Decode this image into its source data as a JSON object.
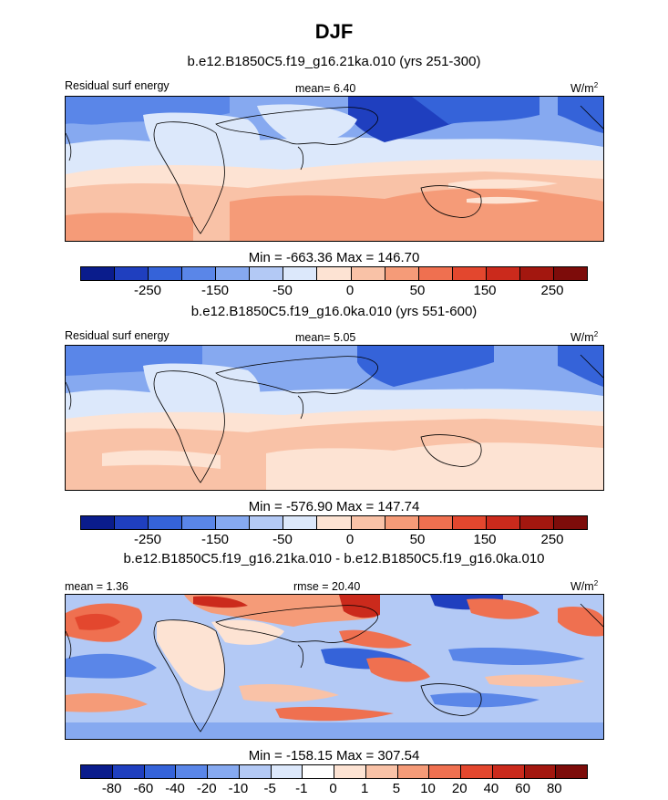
{
  "figure": {
    "title": "DJF"
  },
  "panels": [
    {
      "case": "b.e12.B1850C5.f19_g16.21ka.010 (yrs 251-300)",
      "left_label": "Residual surf energy",
      "center_label": "mean=   6.40",
      "units_base": "W/m",
      "units_exp": "2",
      "min_max": "Min = -663.36 Max = 146.70",
      "colorbar": {
        "colors": [
          "#0a1c8c",
          "#1f3fbf",
          "#3563d9",
          "#5a86e8",
          "#86a9f0",
          "#b3c9f5",
          "#dce8fb",
          "#fde3d3",
          "#f9c2a7",
          "#f59b78",
          "#ef7050",
          "#e3472e",
          "#cb2a1c",
          "#a3170f",
          "#7d0c0a"
        ],
        "ticks": [
          "-250",
          "-150",
          "-50",
          "0",
          "50",
          "150",
          "250"
        ]
      }
    },
    {
      "case": "b.e12.B1850C5.f19_g16.0ka.010 (yrs 551-600)",
      "left_label": "Residual surf energy",
      "center_label": "mean=   5.05",
      "units_base": "W/m",
      "units_exp": "2",
      "min_max": "Min = -576.90 Max = 147.74",
      "colorbar": {
        "colors": [
          "#0a1c8c",
          "#1f3fbf",
          "#3563d9",
          "#5a86e8",
          "#86a9f0",
          "#b3c9f5",
          "#dce8fb",
          "#fde3d3",
          "#f9c2a7",
          "#f59b78",
          "#ef7050",
          "#e3472e",
          "#cb2a1c",
          "#a3170f",
          "#7d0c0a"
        ],
        "ticks": [
          "-250",
          "-150",
          "-50",
          "0",
          "50",
          "150",
          "250"
        ]
      }
    },
    {
      "case": "b.e12.B1850C5.f19_g16.21ka.010 - b.e12.B1850C5.f19_g16.0ka.010",
      "left_label": "mean =   1.36",
      "center_label": "rmse =  20.40",
      "units_base": "W/m",
      "units_exp": "2",
      "min_max": "Min = -158.15 Max = 307.54",
      "colorbar": {
        "colors": [
          "#0a1c8c",
          "#1f3fbf",
          "#3563d9",
          "#5a86e8",
          "#86a9f0",
          "#b3c9f5",
          "#dce8fb",
          "#ffffff",
          "#fde3d3",
          "#f9c2a7",
          "#f59b78",
          "#ef7050",
          "#e3472e",
          "#cb2a1c",
          "#a3170f",
          "#7d0c0a"
        ],
        "ticks": [
          "-80",
          "-60",
          "-40",
          "-20",
          "-10",
          "-5",
          "-1",
          "0",
          "1",
          "5",
          "10",
          "20",
          "40",
          "60",
          "80"
        ]
      }
    }
  ],
  "map_colors": {
    "deep_blue": "#1f3fbf",
    "mid_blue": "#5a86e8",
    "light_blue": "#b3c9f5",
    "pale_blue": "#dce8fb",
    "pale_red": "#fde3d3",
    "light_red": "#f9c2a7",
    "mid_red": "#f59b78",
    "red": "#ef7050",
    "dark_red": "#cb2a1c"
  }
}
